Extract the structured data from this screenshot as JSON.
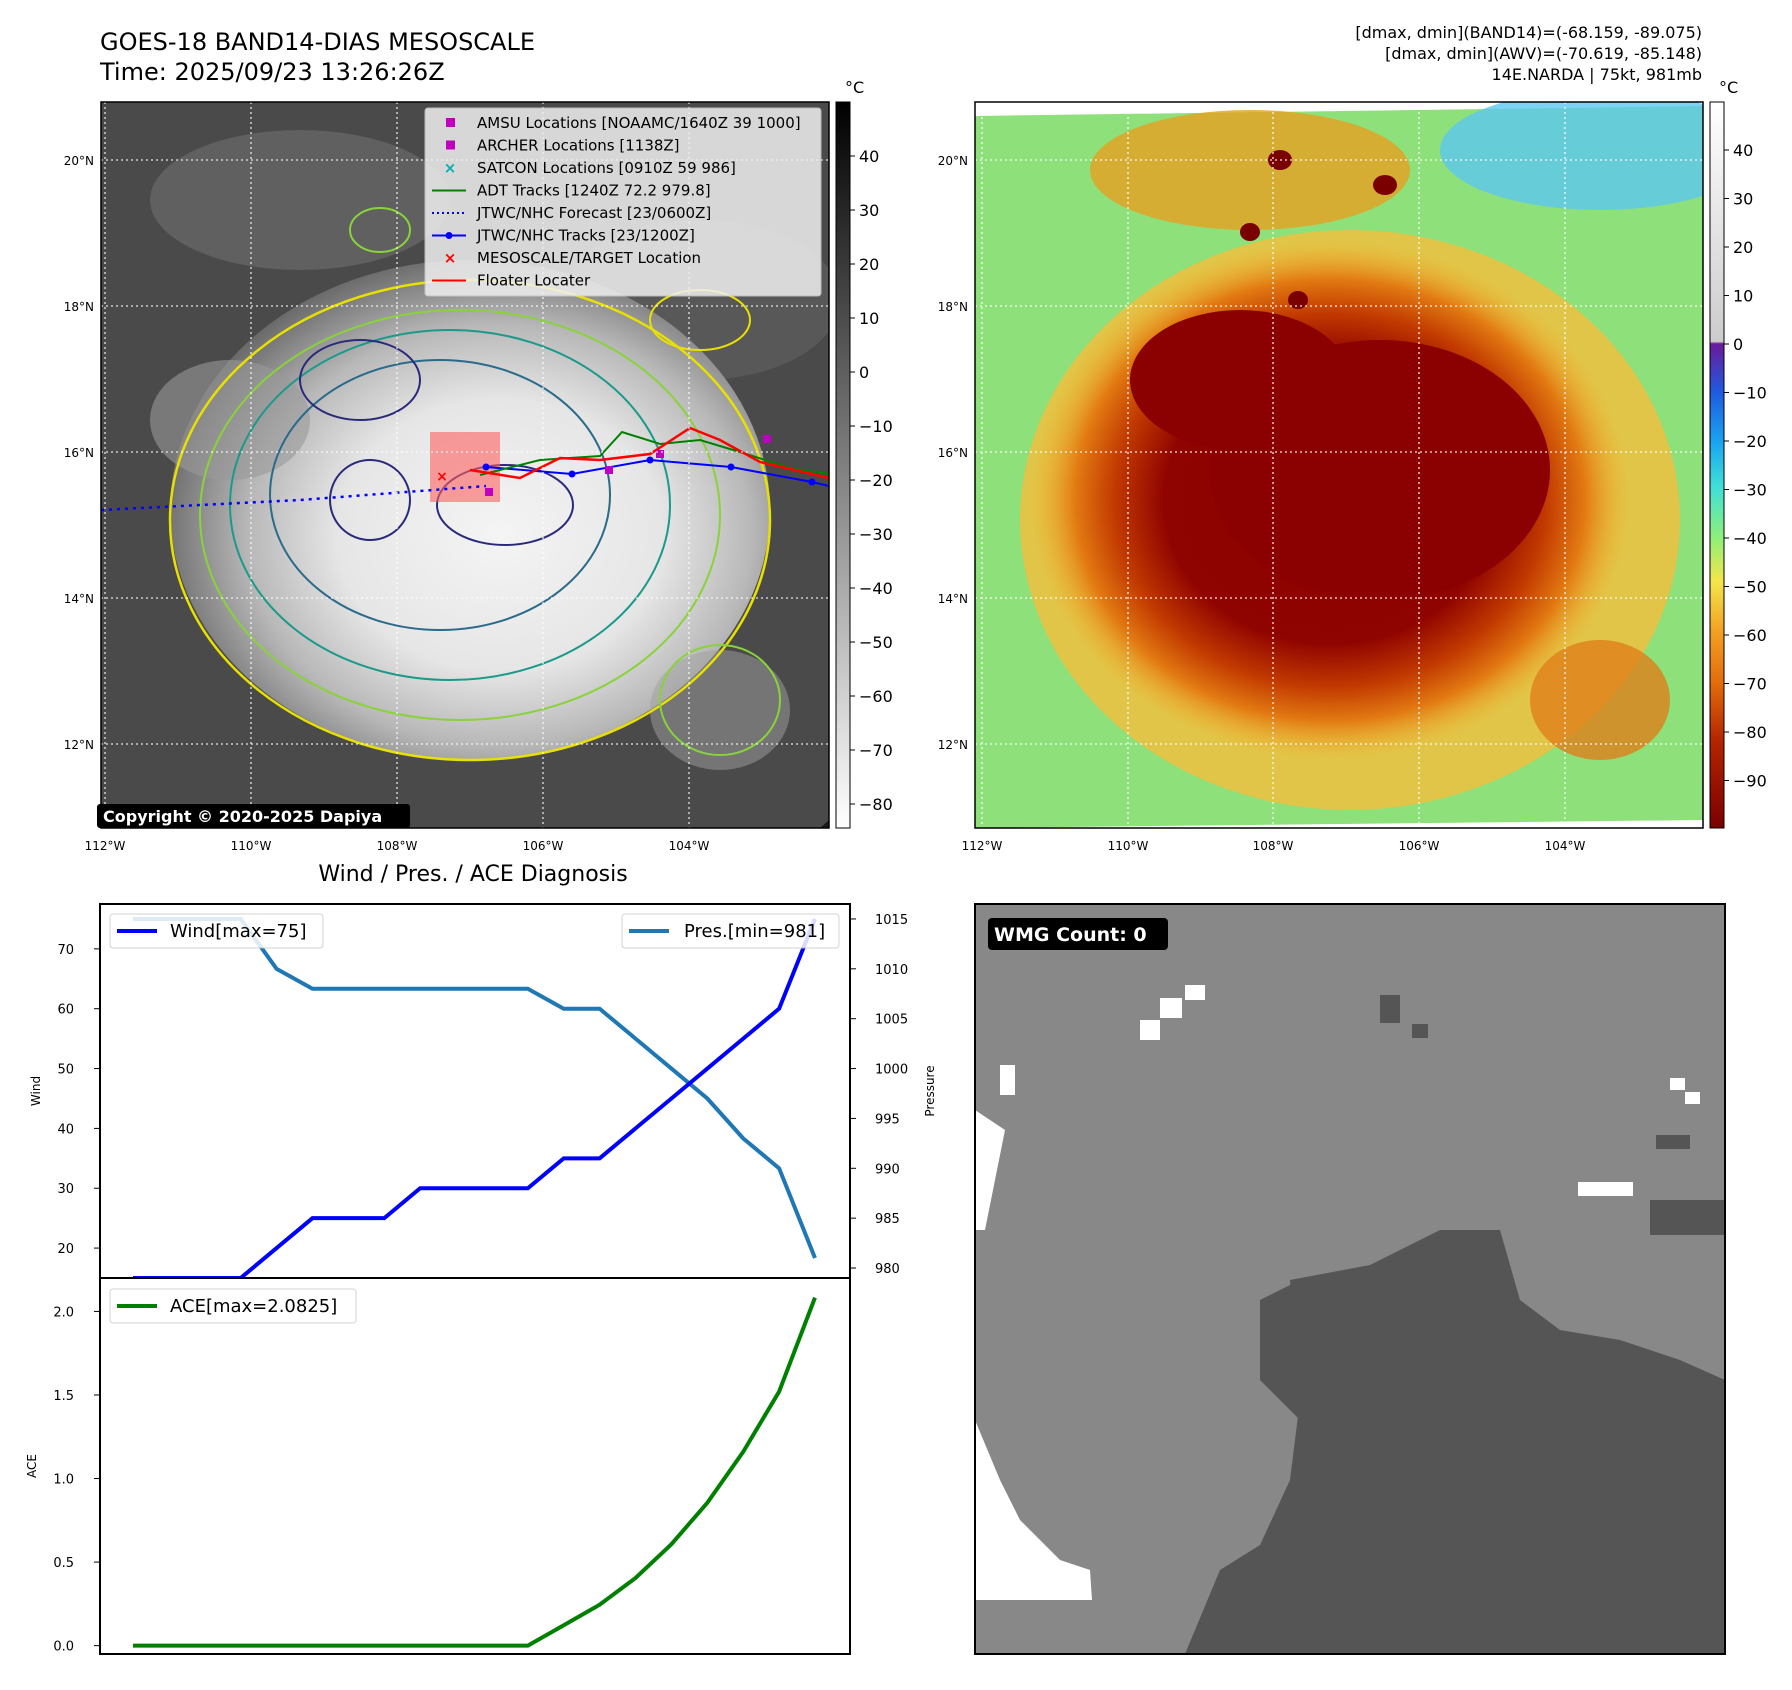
{
  "header": {
    "title": "GOES-18 BAND14-DIAS MESOSCALE",
    "time": "Time: 2025/09/23 13:26:26Z",
    "stat1": "[dmax, dmin](BAND14)=(-68.159, -89.075)",
    "stat2": "[dmax, dmin](AWV)=(-70.619, -85.148)",
    "storm": "14E.NARDA | 75kt, 981mb"
  },
  "map_axes": {
    "lat_labels": [
      "20°N",
      "18°N",
      "16°N",
      "14°N",
      "12°N"
    ],
    "lon_labels": [
      "112°W",
      "110°W",
      "108°W",
      "106°W",
      "104°W"
    ]
  },
  "left_map": {
    "copyright": "Copyright © 2020-2025 Dapiya",
    "colorbar_unit": "°C",
    "colorbar_ticks": [
      "40",
      "30",
      "20",
      "10",
      "0",
      "−10",
      "−20",
      "−30",
      "−40",
      "−50",
      "−60",
      "−70",
      "−80"
    ],
    "legend": [
      {
        "label": "AMSU Locations [NOAAMC/1640Z 39 1000]",
        "marker": "square",
        "color": "#c000c0"
      },
      {
        "label": "ARCHER Locations [1138Z]",
        "marker": "square",
        "color": "#c000c0"
      },
      {
        "label": "SATCON Locations [0910Z 59 986]",
        "marker": "x",
        "color": "#00b0b0"
      },
      {
        "label": "ADT Tracks [1240Z 72.2 979.8]",
        "marker": "line",
        "color": "#008000"
      },
      {
        "label": "JTWC/NHC Forecast [23/0600Z]",
        "marker": "dotted",
        "color": "#0000ff"
      },
      {
        "label": "JTWC/NHC Tracks [23/1200Z]",
        "marker": "line-dot",
        "color": "#0000ff"
      },
      {
        "label": "MESOSCALE/TARGET Location",
        "marker": "x",
        "color": "#ff0000"
      },
      {
        "label": "Floater Locater",
        "marker": "line",
        "color": "#ff0000"
      }
    ]
  },
  "right_map": {
    "colorbar_unit": "°C",
    "colorbar_ticks": [
      "40",
      "30",
      "20",
      "10",
      "0",
      "−10",
      "−20",
      "−30",
      "−40",
      "−50",
      "−60",
      "−70",
      "−80",
      "−90"
    ]
  },
  "wmg": {
    "count_label": "WMG Count: 0"
  },
  "colors": {
    "wind": "#0000ff",
    "pressure": "#1f77b4",
    "ace": "#008000",
    "dark_bg": "#1a1a1a",
    "wmg_gray": "#888888",
    "wmg_dark": "#555555"
  },
  "chart_data": [
    {
      "type": "line",
      "title": "Wind / Pres. / ACE Diagnosis",
      "ylabel": "Wind",
      "ylabel_right": "Pressure",
      "yticks": [
        "20",
        "30",
        "40",
        "50",
        "60",
        "70"
      ],
      "yticks_right": [
        "980",
        "985",
        "990",
        "995",
        "1000",
        "1005",
        "1010",
        "1015"
      ],
      "ylim": [
        15,
        77.5
      ],
      "ylim_right": [
        979,
        1016.5
      ],
      "x": [
        0,
        1,
        2,
        3,
        4,
        5,
        6,
        7,
        8,
        9,
        10,
        11,
        12,
        13,
        14,
        15,
        16,
        17,
        18,
        19
      ],
      "legend_left": "Wind[max=75]",
      "legend_right": "Pres.[min=981]",
      "series": [
        {
          "name": "Wind[max=75]",
          "axis": "left",
          "values": [
            15,
            15,
            15,
            15,
            20,
            25,
            25,
            25,
            30,
            30,
            30,
            30,
            35,
            35,
            40,
            45,
            50,
            55,
            60,
            75
          ]
        },
        {
          "name": "Pres.[min=981]",
          "axis": "right",
          "values": [
            1015,
            1015,
            1015,
            1015,
            1010,
            1008,
            1008,
            1008,
            1008,
            1008,
            1008,
            1008,
            1006,
            1006,
            1003,
            1000,
            997,
            993,
            990,
            981
          ]
        }
      ]
    },
    {
      "type": "line",
      "ylabel": "ACE",
      "yticks": [
        "0.0",
        "0.5",
        "1.0",
        "1.5",
        "2.0"
      ],
      "ylim": [
        -0.05,
        2.2
      ],
      "x": [
        0,
        1,
        2,
        3,
        4,
        5,
        6,
        7,
        8,
        9,
        10,
        11,
        12,
        13,
        14,
        15,
        16,
        17,
        18,
        19
      ],
      "legend": "ACE[max=2.0825]",
      "series": [
        {
          "name": "ACE[max=2.0825]",
          "values": [
            0,
            0,
            0,
            0,
            0,
            0,
            0,
            0,
            0,
            0,
            0,
            0,
            0.122,
            0.245,
            0.405,
            0.607,
            0.855,
            1.16,
            1.52,
            2.0825
          ]
        }
      ]
    }
  ]
}
